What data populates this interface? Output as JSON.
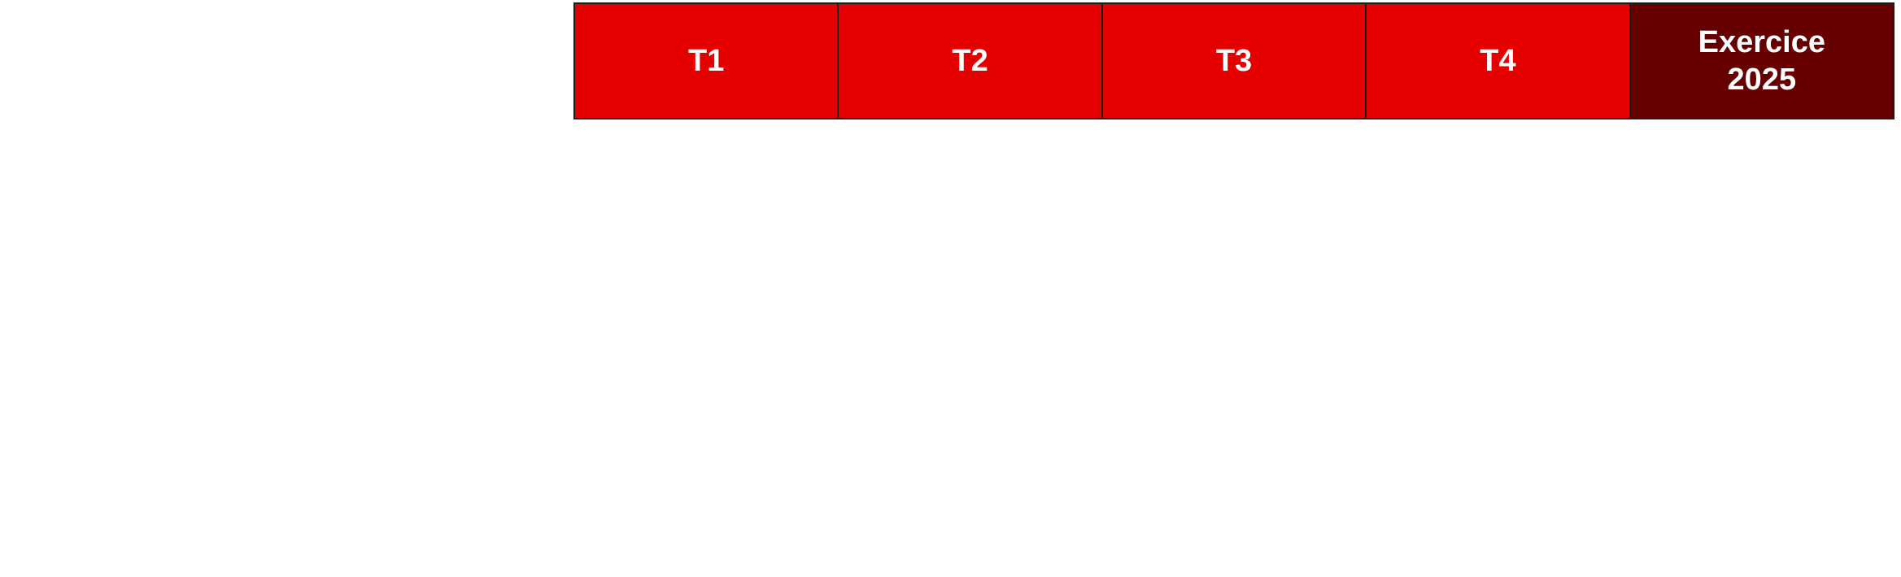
{
  "header": {
    "columns": [
      {
        "label": "T1"
      },
      {
        "label": "T2"
      },
      {
        "label": "T3"
      },
      {
        "label": "T4"
      }
    ],
    "total": {
      "line1": "Exercice",
      "line2": "2025"
    }
  },
  "colors": {
    "quarter_bg": "#e50000",
    "total_bg": "#660000",
    "text": "#ffffff",
    "border": "#1a1a1a"
  }
}
